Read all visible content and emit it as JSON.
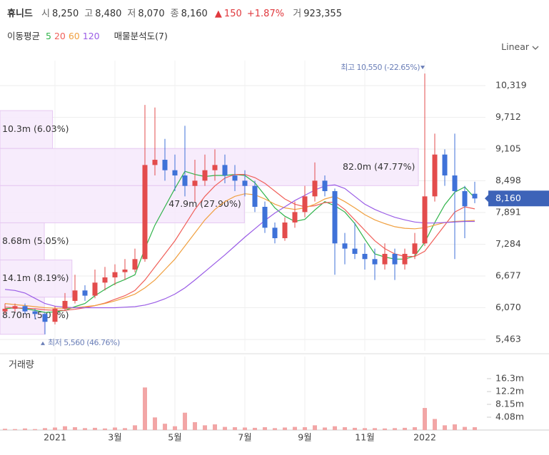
{
  "chart_data": {
    "type": "candlestick",
    "title": "휴니드",
    "quote": [
      {
        "label": "시",
        "value": 8250,
        "value_label": "8,250"
      },
      {
        "label": "고",
        "value": 8480,
        "value_label": "8,480"
      },
      {
        "label": "저",
        "value": 8070,
        "value_label": "8,070"
      },
      {
        "label": "종",
        "value": 8160,
        "value_label": "8,160"
      }
    ],
    "change": {
      "value": 150,
      "value_label": "150"
    },
    "change_pct": {
      "value": 1.87,
      "value_label": "+1.87%"
    },
    "volume_today": {
      "label": "거",
      "value": 923355,
      "value_label": "923,355"
    },
    "ma_label": "이동평균",
    "profile_label": "매물분석도(7)",
    "scale_mode": "Linear",
    "volume_title": "거래량",
    "categories": [
      null,
      null,
      null,
      null,
      null,
      "2021",
      null,
      null,
      null,
      null,
      null,
      "3월",
      null,
      null,
      null,
      null,
      null,
      "5월",
      null,
      null,
      null,
      null,
      null,
      null,
      "7월",
      null,
      null,
      null,
      null,
      null,
      "9월",
      null,
      null,
      null,
      null,
      null,
      "11월",
      null,
      null,
      null,
      null,
      null,
      "2022",
      null,
      null,
      null,
      null,
      null
    ],
    "open": [
      6000,
      6050,
      6100,
      6000,
      5950,
      5800,
      6050,
      6200,
      6400,
      6300,
      6550,
      6650,
      6750,
      6800,
      7000,
      8800,
      8900,
      8700,
      8600,
      8400,
      8500,
      8700,
      8800,
      8600,
      8500,
      8400,
      8000,
      7600,
      7400,
      7700,
      7900,
      8200,
      8500,
      8300,
      7300,
      7200,
      7100,
      7000,
      6900,
      7100,
      6900,
      7100,
      7300,
      8200,
      9000,
      8600,
      8300,
      8250
    ],
    "high": [
      6150,
      6150,
      6150,
      6050,
      5980,
      6100,
      6350,
      6700,
      6500,
      6800,
      6850,
      6900,
      7000,
      7200,
      9950,
      9900,
      9300,
      9000,
      9550,
      8900,
      9000,
      9100,
      9000,
      8800,
      8700,
      8500,
      8100,
      7700,
      7800,
      8100,
      8400,
      8850,
      8600,
      8350,
      7500,
      7700,
      7300,
      7200,
      7300,
      7200,
      7200,
      7500,
      10550,
      9400,
      9100,
      9400,
      8400,
      8480
    ],
    "low": [
      5950,
      6000,
      5950,
      5850,
      5560,
      5750,
      6000,
      6150,
      6200,
      6250,
      6400,
      6500,
      6600,
      6750,
      6950,
      8600,
      8500,
      8300,
      8200,
      8100,
      8400,
      8500,
      8450,
      8300,
      8200,
      7900,
      7500,
      7300,
      7350,
      7600,
      7800,
      8100,
      8200,
      6700,
      6900,
      7000,
      6800,
      6600,
      6800,
      6600,
      6800,
      7000,
      7250,
      8100,
      8400,
      7000,
      7400,
      8070
    ],
    "close": [
      6050,
      6100,
      6000,
      5950,
      5800,
      6050,
      6200,
      6400,
      6300,
      6550,
      6650,
      6750,
      6800,
      7000,
      8800,
      8900,
      8700,
      8600,
      8400,
      8500,
      8700,
      8800,
      8600,
      8500,
      8400,
      8000,
      7600,
      7400,
      7700,
      7900,
      8200,
      8500,
      8300,
      7300,
      7200,
      7100,
      7000,
      6900,
      7100,
      6900,
      7100,
      7300,
      8200,
      9000,
      8600,
      8300,
      8010,
      8160
    ],
    "up_color": "#e34c4c",
    "down_color": "#3f72d8",
    "moving_averages": [
      {
        "name": "5",
        "color": "#2fb34a",
        "values": [
          6050,
          6070,
          6050,
          6020,
          5980,
          5990,
          6020,
          6090,
          6150,
          6300,
          6420,
          6530,
          6610,
          6700,
          7200,
          7650,
          8000,
          8350,
          8680,
          8620,
          8580,
          8600,
          8600,
          8620,
          8600,
          8460,
          8220,
          7980,
          7820,
          7720,
          7760,
          7940,
          8100,
          8020,
          7900,
          7680,
          7380,
          7100,
          7040,
          7000,
          7000,
          7060,
          7320,
          7700,
          8040,
          8280,
          8380,
          8170
        ]
      },
      {
        "name": "20",
        "color": "#f0605a",
        "values": [
          6080,
          6070,
          6060,
          6050,
          6030,
          6020,
          6020,
          6040,
          6070,
          6110,
          6160,
          6230,
          6300,
          6400,
          6600,
          6850,
          7100,
          7350,
          7650,
          7950,
          8200,
          8400,
          8550,
          8620,
          8620,
          8560,
          8450,
          8300,
          8150,
          8050,
          8000,
          8020,
          8080,
          8090,
          7950,
          7750,
          7550,
          7350,
          7200,
          7100,
          7050,
          7050,
          7150,
          7400,
          7650,
          7900,
          8000,
          7960
        ]
      },
      {
        "name": "60",
        "color": "#f0a040",
        "values": [
          6150,
          6130,
          6110,
          6090,
          6070,
          6060,
          6060,
          6070,
          6090,
          6110,
          6150,
          6200,
          6260,
          6330,
          6450,
          6600,
          6800,
          7000,
          7250,
          7500,
          7750,
          7950,
          8100,
          8200,
          8250,
          8230,
          8150,
          8050,
          7980,
          7950,
          7980,
          8050,
          8150,
          8200,
          8100,
          7980,
          7850,
          7750,
          7680,
          7620,
          7590,
          7580,
          7600,
          7650,
          7700,
          7720,
          7730,
          7740
        ]
      },
      {
        "name": "120",
        "color": "#9a5ce6",
        "values": [
          6420,
          6400,
          6350,
          6250,
          6150,
          6100,
          6080,
          6070,
          6070,
          6070,
          6070,
          6070,
          6080,
          6090,
          6120,
          6170,
          6240,
          6330,
          6450,
          6600,
          6760,
          6920,
          7080,
          7250,
          7420,
          7580,
          7740,
          7880,
          8000,
          8120,
          8220,
          8320,
          8400,
          8420,
          8350,
          8200,
          8050,
          7950,
          7870,
          7800,
          7750,
          7710,
          7690,
          7690,
          7700,
          7710,
          7720,
          7720
        ]
      }
    ],
    "volume": [
      0.4,
      0.3,
      0.5,
      0.3,
      0.6,
      0.8,
      1.2,
      0.9,
      0.6,
      0.7,
      0.5,
      0.8,
      0.6,
      1.5,
      13.5,
      4.0,
      2.0,
      1.2,
      5.5,
      2.5,
      1.5,
      1.8,
      1.0,
      0.9,
      0.8,
      0.7,
      0.9,
      0.6,
      0.8,
      1.0,
      0.9,
      1.5,
      0.8,
      1.2,
      0.9,
      0.7,
      0.6,
      0.6,
      0.5,
      0.6,
      0.7,
      0.9,
      7.0,
      3.5,
      1.5,
      1.8,
      1.0,
      0.9
    ],
    "volume_color": "#f2a6a6",
    "volume_profile": [
      {
        "low": 9116,
        "high": 9841,
        "value": 10.3,
        "percent": 6.03,
        "value_label": "10.3m (6.03%)"
      },
      {
        "low": 8405,
        "high": 9116,
        "value": 82.0,
        "percent": 47.77,
        "value_label": "82.0m (47.77%)"
      },
      {
        "low": 7694,
        "high": 8405,
        "value": 47.9,
        "percent": 27.9,
        "value_label": "47.9m (27.90%)"
      },
      {
        "low": 6983,
        "high": 7694,
        "value": 8.68,
        "percent": 5.05,
        "value_label": "8.68m (5.05%)"
      },
      {
        "low": 6272,
        "high": 6983,
        "value": 14.1,
        "percent": 8.19,
        "value_label": "14.1m (8.19%)"
      },
      {
        "low": 5561,
        "high": 6272,
        "value": 8.7,
        "percent": 5.07,
        "value_label": "8.70m (5.07%)"
      }
    ],
    "annotations": [
      {
        "text": "최고 10,550 (-22.65%)",
        "value": 10550,
        "index": 42,
        "position": "top"
      },
      {
        "text": "최저 5,560 (46.76%)",
        "value": 5560,
        "index": 4,
        "position": "bottom"
      }
    ],
    "ylim": [
      5244,
      10797
    ],
    "yticks": [
      {
        "value": 5463,
        "label": "5,463"
      },
      {
        "value": 6070,
        "label": "6,070"
      },
      {
        "value": 6677,
        "label": "6,677"
      },
      {
        "value": 7284,
        "label": "7,284"
      },
      {
        "value": 7891,
        "label": "7,891"
      },
      {
        "value": 8498,
        "label": "8,498"
      },
      {
        "value": 9105,
        "label": "9,105"
      },
      {
        "value": 9712,
        "label": "9,712"
      },
      {
        "value": 10319,
        "label": "10,319"
      }
    ],
    "y2lim": [
      0,
      23.3
    ],
    "y2ticks": [
      {
        "value": 4.08,
        "label": "4.08m"
      },
      {
        "value": 8.15,
        "label": "8.15m"
      },
      {
        "value": 12.2,
        "label": "12.2m"
      },
      {
        "value": 16.3,
        "label": "16.3m"
      }
    ],
    "grid": true
  }
}
